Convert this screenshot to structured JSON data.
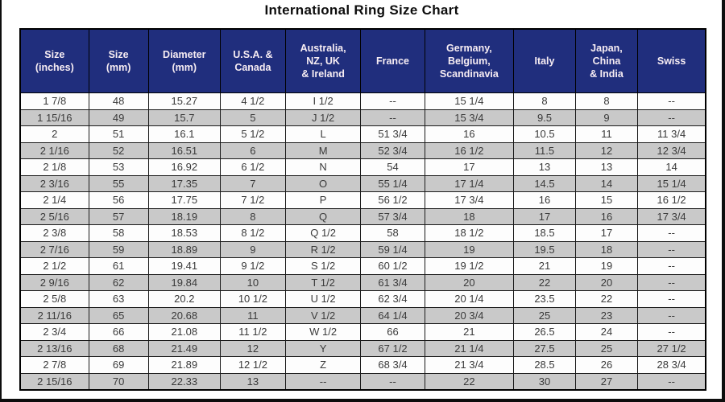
{
  "title": "International Ring Size Chart",
  "colors": {
    "header_bg": "#202e7d",
    "header_text": "#f7edf3",
    "row_alt_gray": "#c9c9c9",
    "row_white": "#fdfdfd",
    "cell_text": "#3a3a3a",
    "grid_border": "#000000"
  },
  "chart_data": {
    "type": "table",
    "title": "International Ring Size Chart",
    "columns": [
      "Size\n(inches)",
      "Size\n(mm)",
      "Diameter\n(mm)",
      "U.S.A. &\nCanada",
      "Australia,\nNZ, UK\n& Ireland",
      "France",
      "Germany,\nBelgium,\nScandinavia",
      "Italy",
      "Japan,\nChina\n& India",
      "Swiss"
    ],
    "rows": [
      [
        "1 7/8",
        "48",
        "15.27",
        "4 1/2",
        "I 1/2",
        "--",
        "15 1/4",
        "8",
        "8",
        "--"
      ],
      [
        "1 15/16",
        "49",
        "15.7",
        "5",
        "J 1/2",
        "--",
        "15 3/4",
        "9.5",
        "9",
        "--"
      ],
      [
        "2",
        "51",
        "16.1",
        "5 1/2",
        "L",
        "51 3/4",
        "16",
        "10.5",
        "11",
        "11 3/4"
      ],
      [
        "2 1/16",
        "52",
        "16.51",
        "6",
        "M",
        "52 3/4",
        "16 1/2",
        "11.5",
        "12",
        "12 3/4"
      ],
      [
        "2 1/8",
        "53",
        "16.92",
        "6 1/2",
        "N",
        "54",
        "17",
        "13",
        "13",
        "14"
      ],
      [
        "2 3/16",
        "55",
        "17.35",
        "7",
        "O",
        "55 1/4",
        "17 1/4",
        "14.5",
        "14",
        "15 1/4"
      ],
      [
        "2 1/4",
        "56",
        "17.75",
        "7 1/2",
        "P",
        "56 1/2",
        "17 3/4",
        "16",
        "15",
        "16 1/2"
      ],
      [
        "2 5/16",
        "57",
        "18.19",
        "8",
        "Q",
        "57 3/4",
        "18",
        "17",
        "16",
        "17 3/4"
      ],
      [
        "2 3/8",
        "58",
        "18.53",
        "8 1/2",
        "Q 1/2",
        "58",
        "18 1/2",
        "18.5",
        "17",
        "--"
      ],
      [
        "2 7/16",
        "59",
        "18.89",
        "9",
        "R 1/2",
        "59 1/4",
        "19",
        "19.5",
        "18",
        "--"
      ],
      [
        "2 1/2",
        "61",
        "19.41",
        "9 1/2",
        "S 1/2",
        "60 1/2",
        "19 1/2",
        "21",
        "19",
        "--"
      ],
      [
        "2 9/16",
        "62",
        "19.84",
        "10",
        "T 1/2",
        "61 3/4",
        "20",
        "22",
        "20",
        "--"
      ],
      [
        "2 5/8",
        "63",
        "20.2",
        "10 1/2",
        "U 1/2",
        "62 3/4",
        "20 1/4",
        "23.5",
        "22",
        "--"
      ],
      [
        "2 11/16",
        "65",
        "20.68",
        "11",
        "V 1/2",
        "64 1/4",
        "20 3/4",
        "25",
        "23",
        "--"
      ],
      [
        "2 3/4",
        "66",
        "21.08",
        "11 1/2",
        "W 1/2",
        "66",
        "21",
        "26.5",
        "24",
        "--"
      ],
      [
        "2 13/16",
        "68",
        "21.49",
        "12",
        "Y",
        "67 1/2",
        "21 1/4",
        "27.5",
        "25",
        "27 1/2"
      ],
      [
        "2 7/8",
        "69",
        "21.89",
        "12 1/2",
        "Z",
        "68 3/4",
        "21 3/4",
        "28.5",
        "26",
        "28 3/4"
      ],
      [
        "2 15/16",
        "70",
        "22.33",
        "13",
        "--",
        "--",
        "22",
        "30",
        "27",
        "--"
      ]
    ]
  }
}
